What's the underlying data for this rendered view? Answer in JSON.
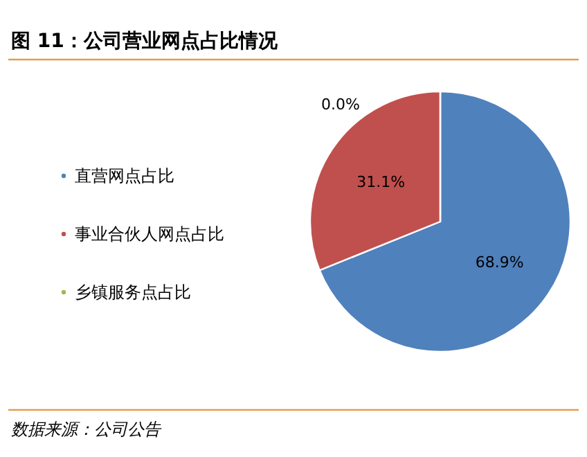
{
  "chart_data": {
    "type": "pie",
    "title": "图 11：公司营业网点占比情况",
    "categories": [
      "直营网点占比",
      "事业合伙人网点占比",
      "乡镇服务点占比"
    ],
    "values": [
      68.9,
      31.1,
      0.0
    ],
    "colors": [
      "#4f81bd",
      "#c0504d",
      "#9bbb59"
    ],
    "value_labels": [
      "68.9%",
      "31.1%",
      "0.0%"
    ],
    "legend": "left",
    "annotations": [
      "数据来源：公司公告"
    ]
  }
}
